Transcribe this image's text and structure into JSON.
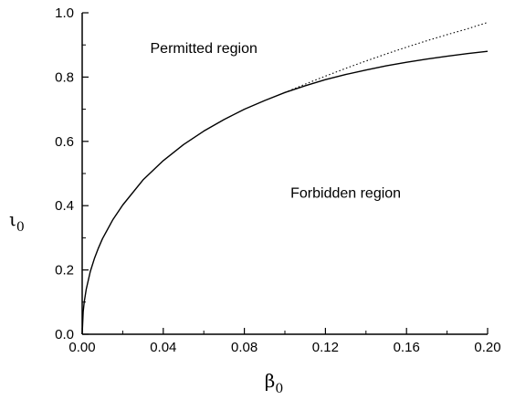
{
  "chart_data": {
    "type": "line",
    "xlabel": "β",
    "xlabel_sub": "0",
    "ylabel": "ι",
    "ylabel_sub": "0",
    "xlim": [
      0,
      0.2
    ],
    "ylim": [
      0,
      1.0
    ],
    "x_ticks": [
      "0.00",
      "0.04",
      "0.08",
      "0.12",
      "0.16",
      "0.20"
    ],
    "y_ticks": [
      "0.0",
      "0.2",
      "0.4",
      "0.6",
      "0.8",
      "1.0"
    ],
    "grid": false,
    "annotations": [
      {
        "text": "Permitted region",
        "x": 0.06,
        "y": 0.875
      },
      {
        "text": "Forbidden region",
        "x": 0.13,
        "y": 0.425
      }
    ],
    "series": [
      {
        "style": "solid",
        "x": [
          0,
          0.0005,
          0.001,
          0.002,
          0.004,
          0.006,
          0.008,
          0.01,
          0.015,
          0.02,
          0.03,
          0.04,
          0.05,
          0.06,
          0.07,
          0.08,
          0.09,
          0.1,
          0.11,
          0.12,
          0.13,
          0.14,
          0.15,
          0.16,
          0.17,
          0.18,
          0.19,
          0.2
        ],
        "y": [
          0,
          0.07,
          0.1,
          0.14,
          0.195,
          0.235,
          0.268,
          0.297,
          0.355,
          0.402,
          0.48,
          0.54,
          0.59,
          0.632,
          0.668,
          0.7,
          0.727,
          0.752,
          0.773,
          0.792,
          0.808,
          0.822,
          0.835,
          0.846,
          0.856,
          0.865,
          0.873,
          0.88
        ]
      },
      {
        "style": "dotted",
        "x": [
          0.1,
          0.11,
          0.12,
          0.13,
          0.14,
          0.15,
          0.16,
          0.17,
          0.18,
          0.19,
          0.2
        ],
        "y": [
          0.752,
          0.778,
          0.803,
          0.827,
          0.85,
          0.872,
          0.893,
          0.913,
          0.932,
          0.95,
          0.97
        ]
      }
    ]
  }
}
